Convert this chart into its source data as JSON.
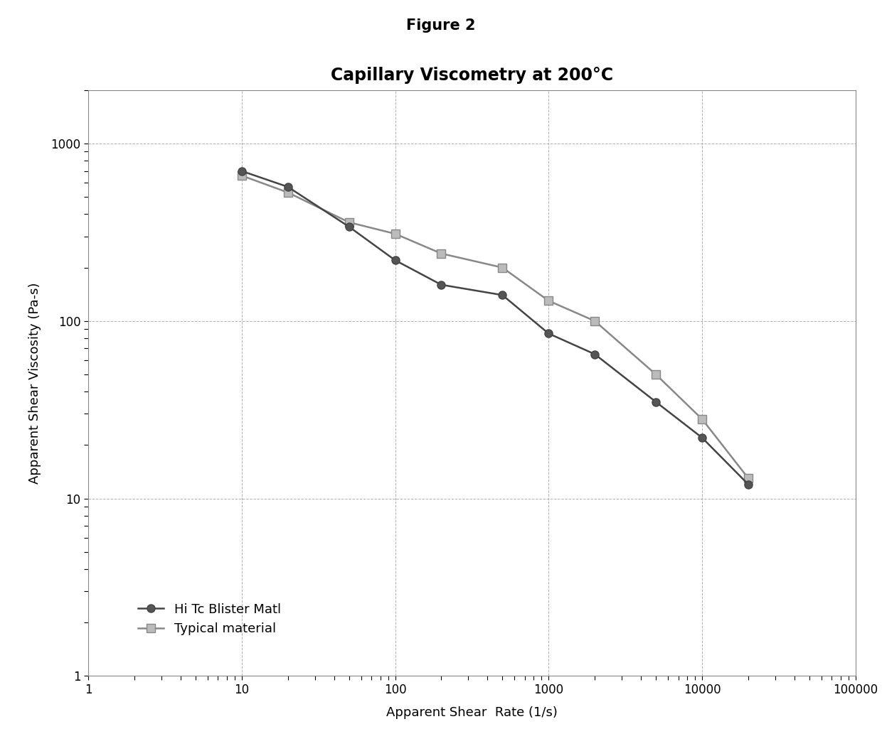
{
  "title": "Figure 2",
  "chart_title": "Capillary Viscometry at 200°C",
  "xlabel": "Apparent Shear  Rate (1/s)",
  "ylabel": "Apparent Shear Viscosity (Pa-s)",
  "series1_label": "Hi Tc Blister Matl",
  "series2_label": "Typical material",
  "series1_x": [
    10,
    20,
    50,
    100,
    200,
    500,
    1000,
    2000,
    5000,
    10000,
    20000
  ],
  "series1_y": [
    700,
    570,
    340,
    220,
    160,
    140,
    85,
    65,
    35,
    22,
    12
  ],
  "series2_x": [
    10,
    20,
    50,
    100,
    200,
    500,
    1000,
    2000,
    5000,
    10000,
    20000
  ],
  "series2_y": [
    660,
    530,
    360,
    310,
    240,
    200,
    130,
    100,
    50,
    28,
    13
  ],
  "series1_color": "#444444",
  "series2_color": "#888888",
  "series1_marker_face": "#555555",
  "series2_marker_face": "#bbbbbb",
  "xlim": [
    1,
    100000
  ],
  "ylim": [
    1,
    2000
  ],
  "background_color": "#ffffff",
  "grid_color": "#aaaaaa",
  "title_fontsize": 15,
  "chart_title_fontsize": 17,
  "axis_label_fontsize": 13,
  "tick_fontsize": 12,
  "legend_fontsize": 13
}
